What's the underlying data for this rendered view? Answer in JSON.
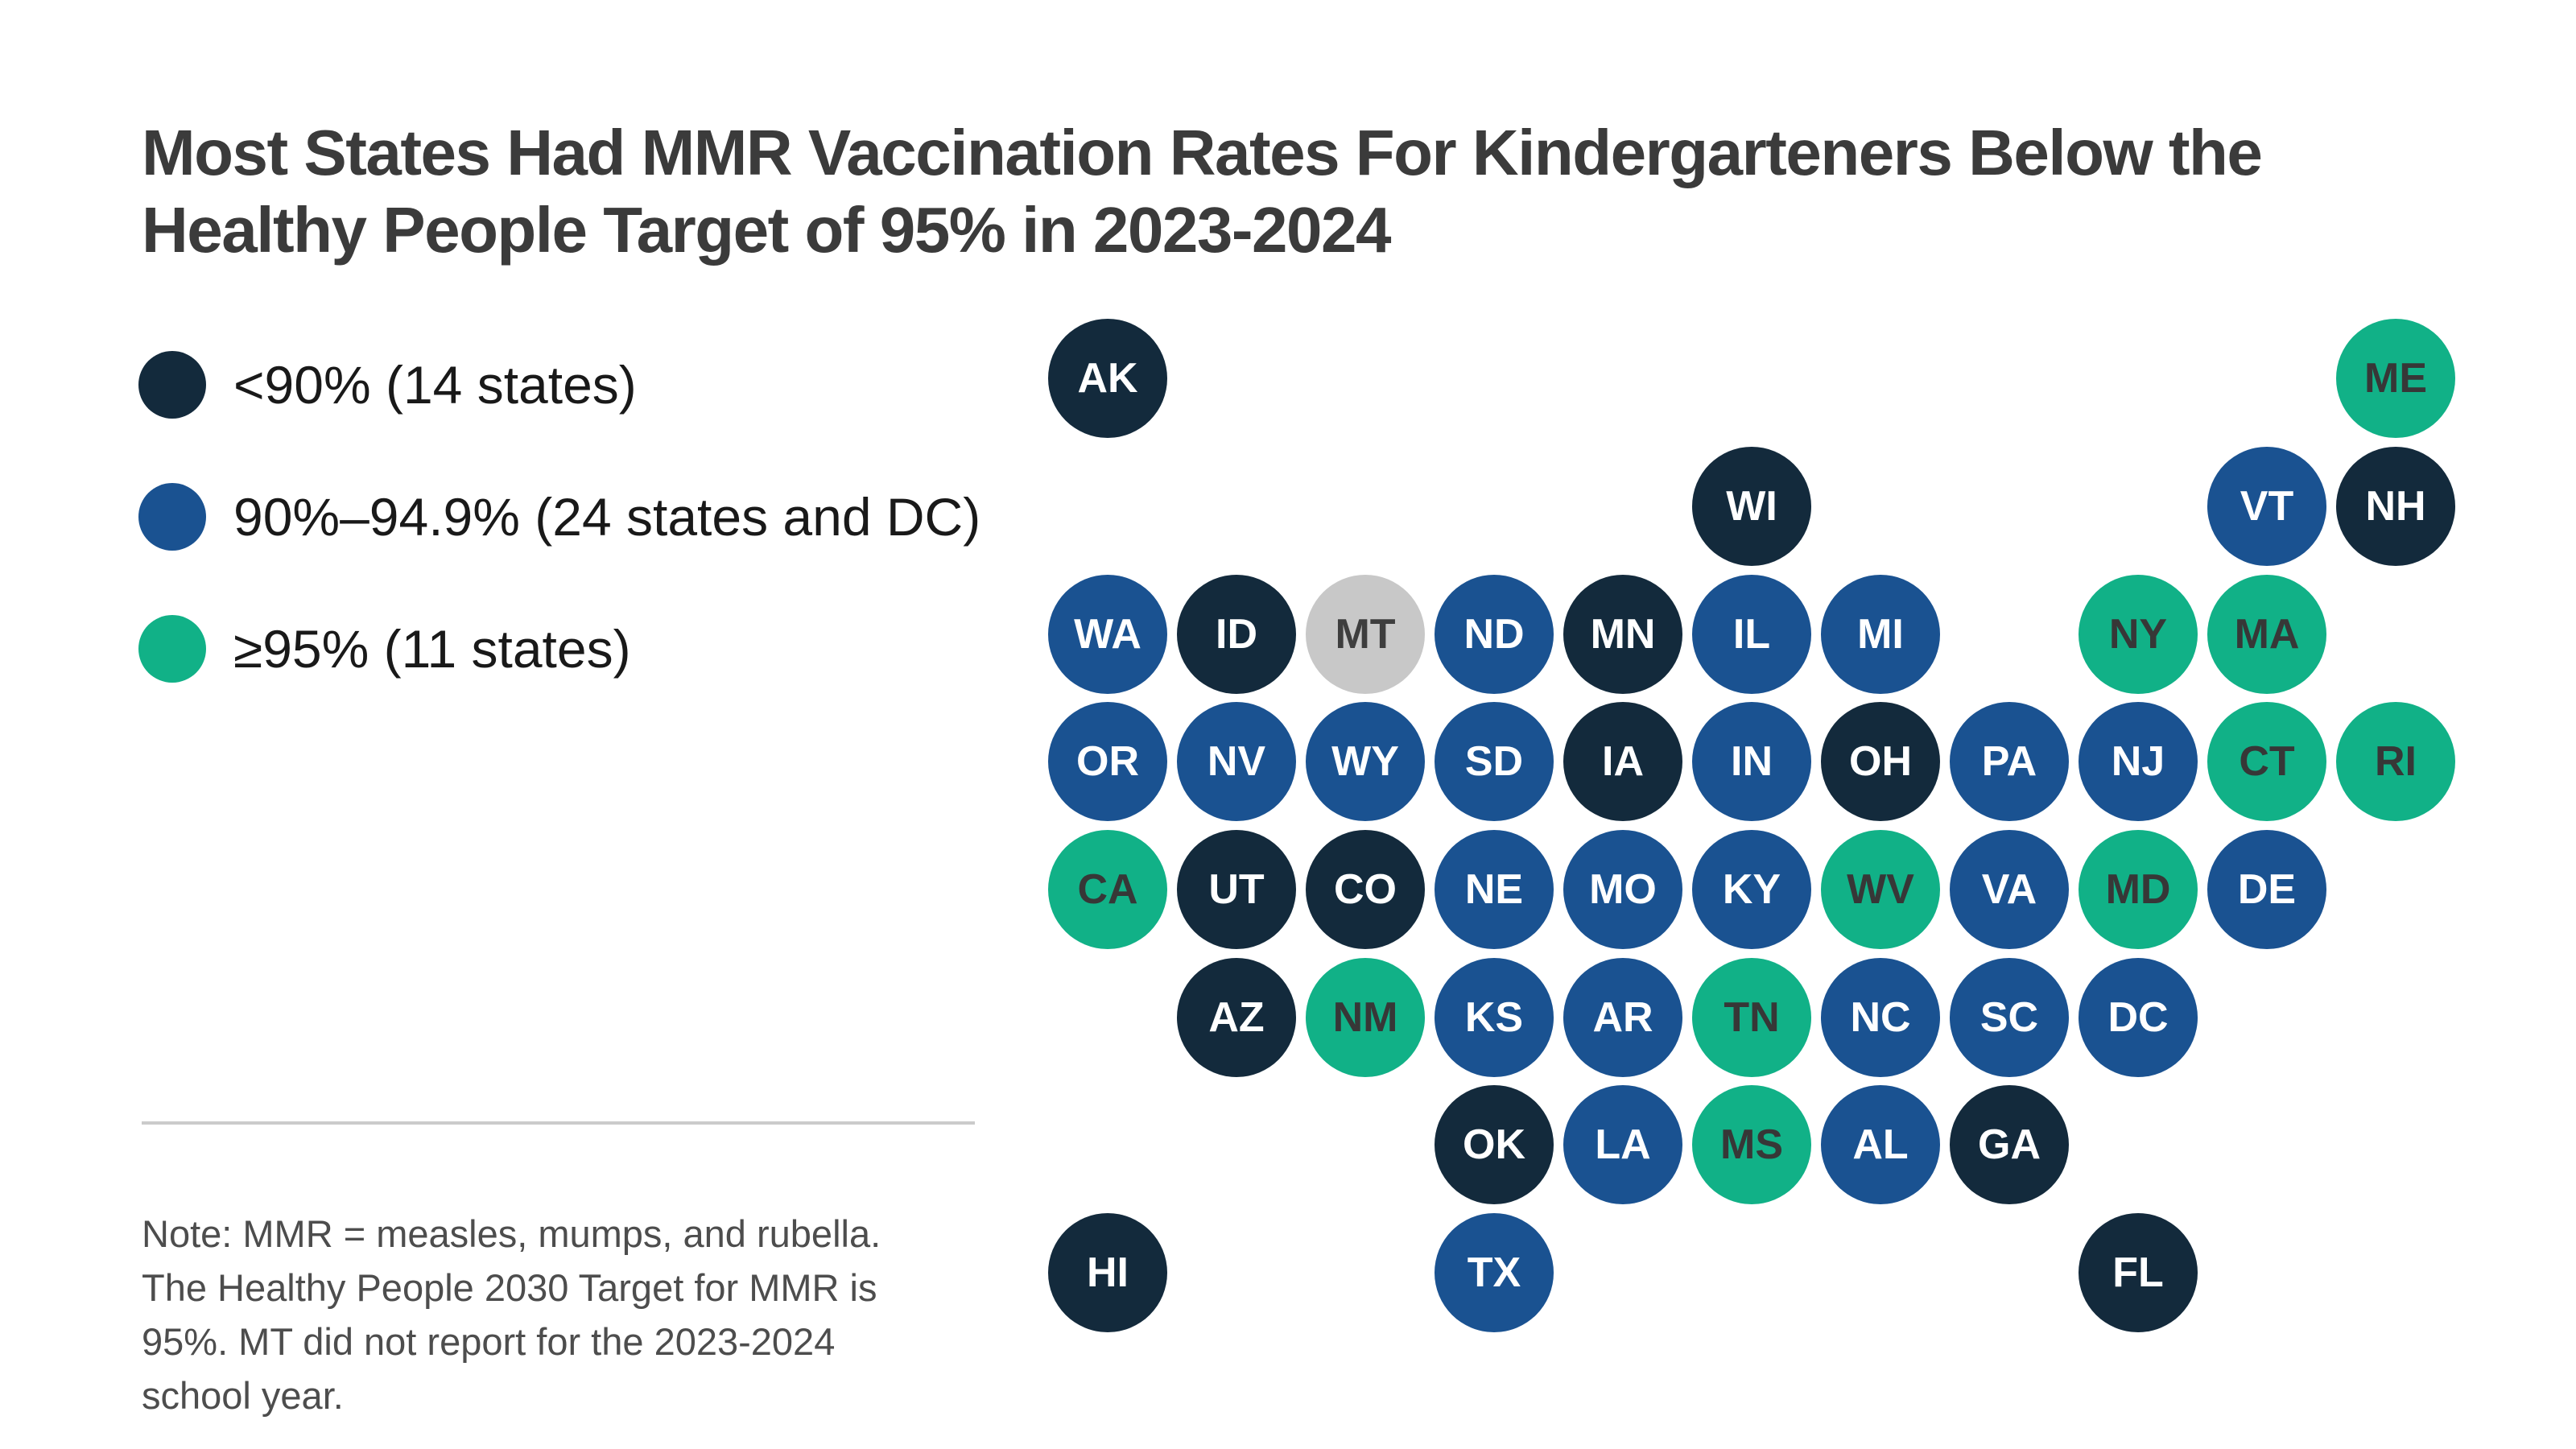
{
  "title": {
    "text": "Most States Had MMR Vaccination Rates For Kindergarteners Below the Healthy People Target of 95% in 2023-2024",
    "color": "#3B3B3B"
  },
  "legend": {
    "items": [
      {
        "key": "lt90",
        "label": "<90% (14 states)",
        "color": "#132A3C"
      },
      {
        "key": "mid",
        "label": "90%–94.9% (24 states and DC)",
        "color": "#1A5291"
      },
      {
        "key": "gte95",
        "label": "≥95% (11 states)",
        "color": "#11B187"
      }
    ]
  },
  "note": {
    "text": "Note: MMR = measles, mumps, and rubella. The Healthy People 2030 Target for MMR is 95%. MT did not report for the 2023-2024 school year."
  },
  "chart_data": {
    "type": "heatmap",
    "subtype": "us_state_tile_map",
    "title": "Most States Had MMR Vaccination Rates For Kindergarteners Below the Healthy People Target of 95% in 2023-2024",
    "legend_position": "left",
    "category_styles": {
      "lt90": {
        "fill": "#132A3C",
        "text": "#FFFFFF",
        "meaning": "<90%"
      },
      "mid": {
        "fill": "#1A5291",
        "text": "#FFFFFF",
        "meaning": "90%–94.9%"
      },
      "gte95": {
        "fill": "#11B187",
        "text": "#373737",
        "meaning": "≥95%"
      },
      "no_report": {
        "fill": "#C8C8C8",
        "text": "#3E3E3E",
        "meaning": "Did not report for 2023-2024"
      }
    },
    "states": [
      {
        "abbr": "AK",
        "col": 1,
        "row": 1,
        "category": "lt90"
      },
      {
        "abbr": "ME",
        "col": 11,
        "row": 1,
        "category": "gte95"
      },
      {
        "abbr": "WI",
        "col": 6,
        "row": 2,
        "category": "lt90"
      },
      {
        "abbr": "VT",
        "col": 10,
        "row": 2,
        "category": "mid"
      },
      {
        "abbr": "NH",
        "col": 11,
        "row": 2,
        "category": "lt90"
      },
      {
        "abbr": "WA",
        "col": 1,
        "row": 3,
        "category": "mid"
      },
      {
        "abbr": "ID",
        "col": 2,
        "row": 3,
        "category": "lt90"
      },
      {
        "abbr": "MT",
        "col": 3,
        "row": 3,
        "category": "no_report"
      },
      {
        "abbr": "ND",
        "col": 4,
        "row": 3,
        "category": "mid"
      },
      {
        "abbr": "MN",
        "col": 5,
        "row": 3,
        "category": "lt90"
      },
      {
        "abbr": "IL",
        "col": 6,
        "row": 3,
        "category": "mid"
      },
      {
        "abbr": "MI",
        "col": 7,
        "row": 3,
        "category": "mid"
      },
      {
        "abbr": "NY",
        "col": 9,
        "row": 3,
        "category": "gte95"
      },
      {
        "abbr": "MA",
        "col": 10,
        "row": 3,
        "category": "gte95"
      },
      {
        "abbr": "OR",
        "col": 1,
        "row": 4,
        "category": "mid"
      },
      {
        "abbr": "NV",
        "col": 2,
        "row": 4,
        "category": "mid"
      },
      {
        "abbr": "WY",
        "col": 3,
        "row": 4,
        "category": "mid"
      },
      {
        "abbr": "SD",
        "col": 4,
        "row": 4,
        "category": "mid"
      },
      {
        "abbr": "IA",
        "col": 5,
        "row": 4,
        "category": "lt90"
      },
      {
        "abbr": "IN",
        "col": 6,
        "row": 4,
        "category": "mid"
      },
      {
        "abbr": "OH",
        "col": 7,
        "row": 4,
        "category": "lt90"
      },
      {
        "abbr": "PA",
        "col": 8,
        "row": 4,
        "category": "mid"
      },
      {
        "abbr": "NJ",
        "col": 9,
        "row": 4,
        "category": "mid"
      },
      {
        "abbr": "CT",
        "col": 10,
        "row": 4,
        "category": "gte95"
      },
      {
        "abbr": "RI",
        "col": 11,
        "row": 4,
        "category": "gte95"
      },
      {
        "abbr": "CA",
        "col": 1,
        "row": 5,
        "category": "gte95"
      },
      {
        "abbr": "UT",
        "col": 2,
        "row": 5,
        "category": "lt90"
      },
      {
        "abbr": "CO",
        "col": 3,
        "row": 5,
        "category": "lt90"
      },
      {
        "abbr": "NE",
        "col": 4,
        "row": 5,
        "category": "mid"
      },
      {
        "abbr": "MO",
        "col": 5,
        "row": 5,
        "category": "mid"
      },
      {
        "abbr": "KY",
        "col": 6,
        "row": 5,
        "category": "mid"
      },
      {
        "abbr": "WV",
        "col": 7,
        "row": 5,
        "category": "gte95"
      },
      {
        "abbr": "VA",
        "col": 8,
        "row": 5,
        "category": "mid"
      },
      {
        "abbr": "MD",
        "col": 9,
        "row": 5,
        "category": "gte95"
      },
      {
        "abbr": "DE",
        "col": 10,
        "row": 5,
        "category": "mid"
      },
      {
        "abbr": "AZ",
        "col": 2,
        "row": 6,
        "category": "lt90"
      },
      {
        "abbr": "NM",
        "col": 3,
        "row": 6,
        "category": "gte95"
      },
      {
        "abbr": "KS",
        "col": 4,
        "row": 6,
        "category": "mid"
      },
      {
        "abbr": "AR",
        "col": 5,
        "row": 6,
        "category": "mid"
      },
      {
        "abbr": "TN",
        "col": 6,
        "row": 6,
        "category": "gte95"
      },
      {
        "abbr": "NC",
        "col": 7,
        "row": 6,
        "category": "mid"
      },
      {
        "abbr": "SC",
        "col": 8,
        "row": 6,
        "category": "mid"
      },
      {
        "abbr": "DC",
        "col": 9,
        "row": 6,
        "category": "mid"
      },
      {
        "abbr": "OK",
        "col": 4,
        "row": 7,
        "category": "lt90"
      },
      {
        "abbr": "LA",
        "col": 5,
        "row": 7,
        "category": "mid"
      },
      {
        "abbr": "MS",
        "col": 6,
        "row": 7,
        "category": "gte95"
      },
      {
        "abbr": "AL",
        "col": 7,
        "row": 7,
        "category": "mid"
      },
      {
        "abbr": "GA",
        "col": 8,
        "row": 7,
        "category": "lt90"
      },
      {
        "abbr": "HI",
        "col": 1,
        "row": 8,
        "category": "lt90"
      },
      {
        "abbr": "TX",
        "col": 4,
        "row": 8,
        "category": "mid"
      },
      {
        "abbr": "FL",
        "col": 9,
        "row": 8,
        "category": "lt90"
      }
    ]
  }
}
